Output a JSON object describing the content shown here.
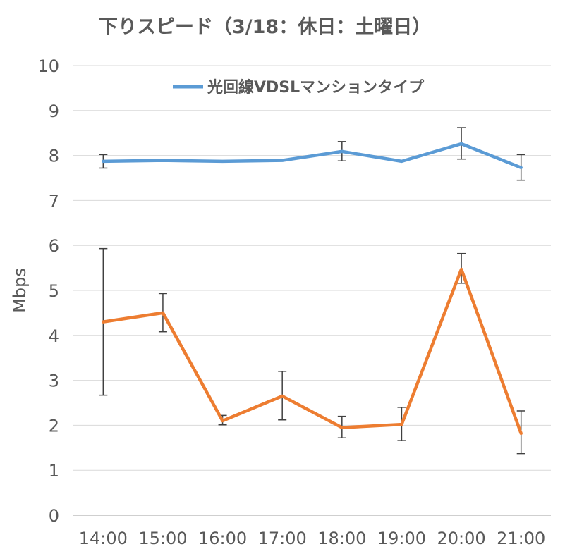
{
  "chart_data": {
    "type": "line",
    "title": "下りスピード（3/18：休日：土曜日）",
    "ylabel": "Mbps",
    "xlabel": "",
    "categories": [
      "14:00",
      "15:00",
      "16:00",
      "17:00",
      "18:00",
      "19:00",
      "20:00",
      "21:00"
    ],
    "ylim": [
      0,
      10
    ],
    "yticks": [
      0,
      1,
      2,
      3,
      4,
      5,
      6,
      7,
      8,
      9,
      10
    ],
    "grid": true,
    "legend_position": "top",
    "series": [
      {
        "name": "光回線VDSLマンションタイプ",
        "color": "#5b9bd5",
        "values": [
          7.87,
          7.89,
          7.87,
          7.89,
          8.09,
          7.87,
          8.26,
          7.73
        ],
        "error_low": [
          7.72,
          null,
          null,
          null,
          7.88,
          null,
          7.92,
          7.45
        ],
        "error_high": [
          8.02,
          null,
          null,
          null,
          8.31,
          null,
          8.62,
          8.02
        ]
      },
      {
        "name": "",
        "color": "#ed7d31",
        "values": [
          4.3,
          4.5,
          2.1,
          2.65,
          1.95,
          2.02,
          5.47,
          1.82
        ],
        "error_low": [
          2.67,
          4.08,
          2.01,
          2.12,
          1.72,
          1.66,
          5.16,
          1.37
        ],
        "error_high": [
          5.93,
          4.93,
          2.22,
          3.2,
          2.2,
          2.4,
          5.82,
          2.32
        ]
      }
    ]
  }
}
